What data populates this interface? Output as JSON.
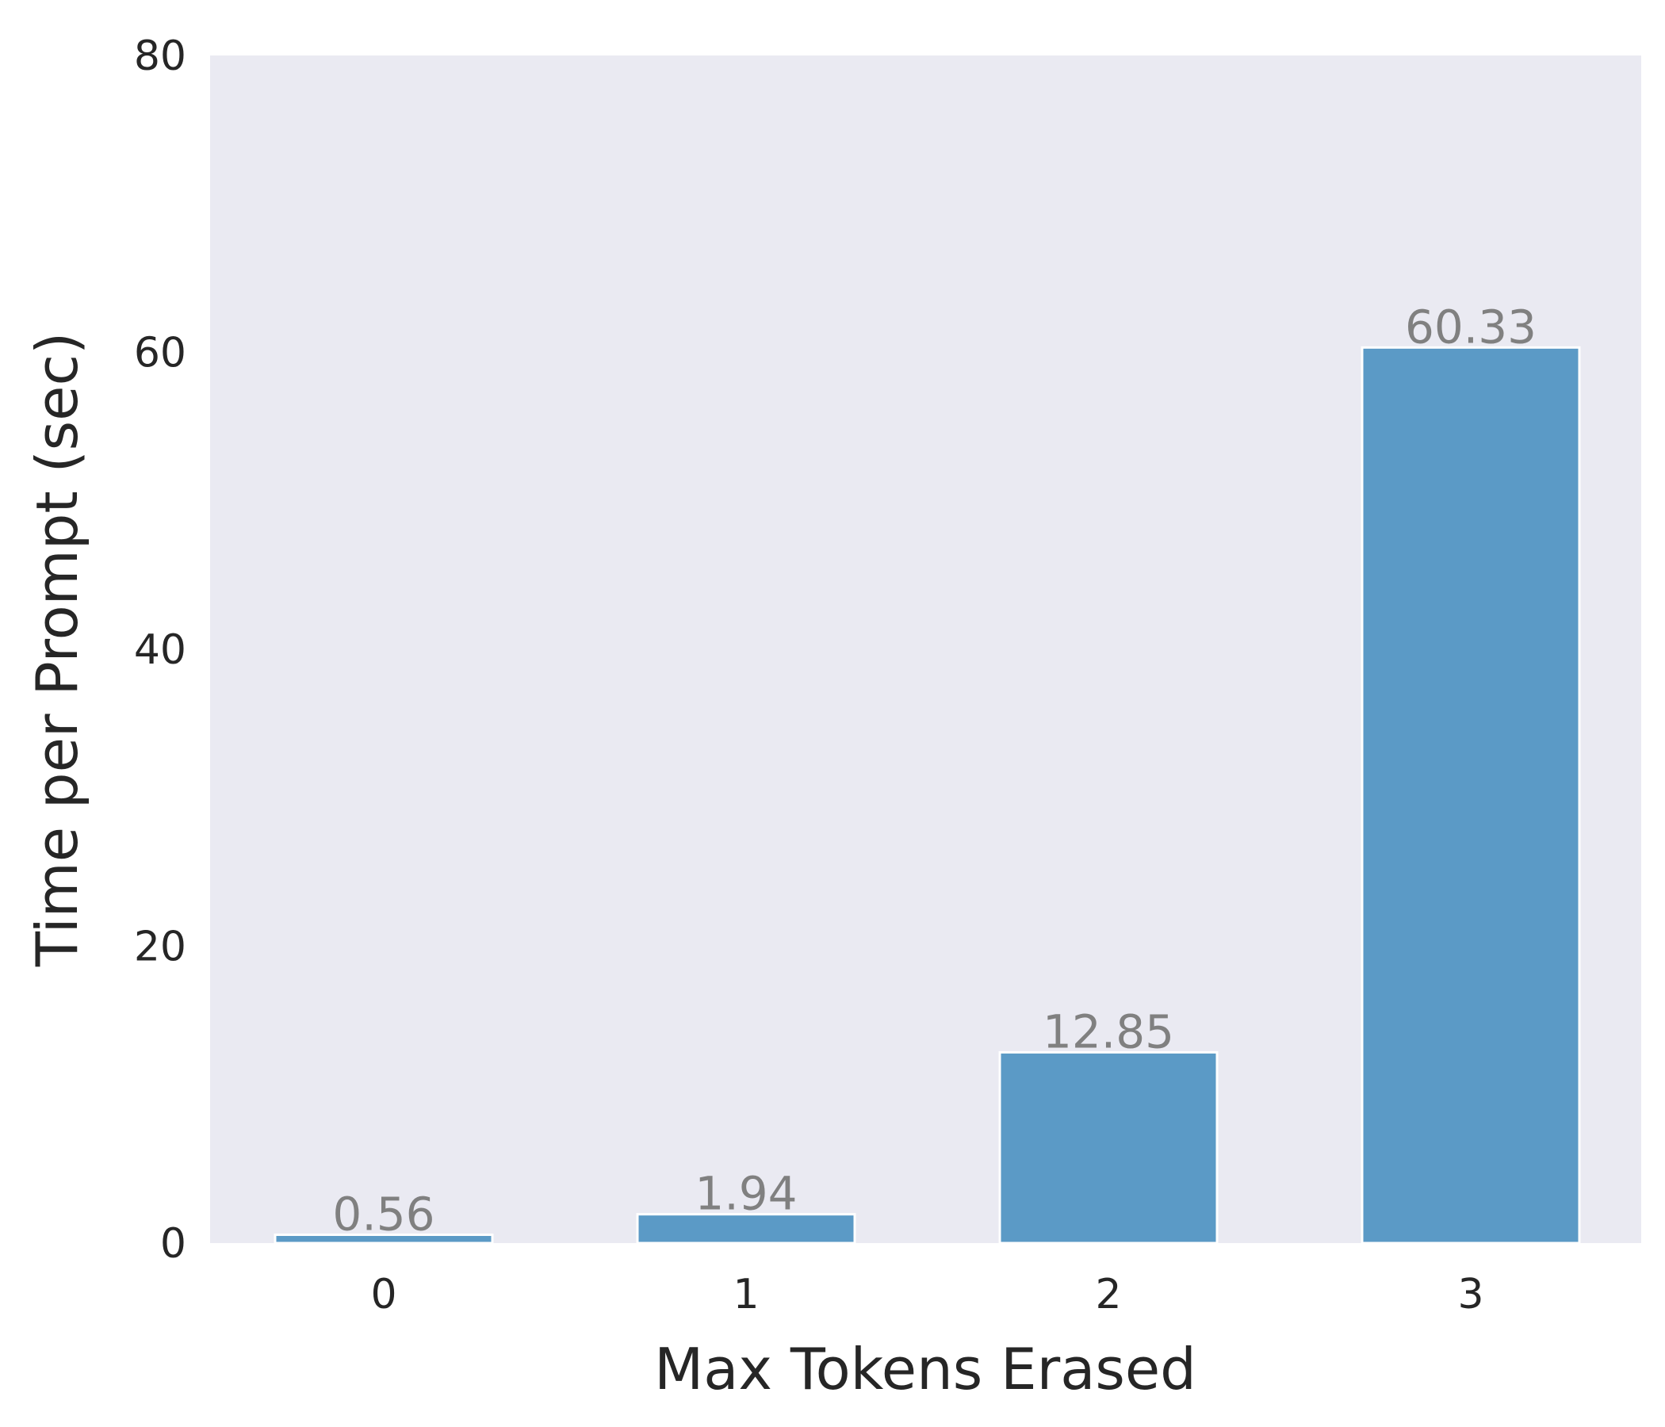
{
  "chart_data": {
    "type": "bar",
    "categories": [
      "0",
      "1",
      "2",
      "3"
    ],
    "values": [
      0.56,
      1.94,
      12.85,
      60.33
    ],
    "value_labels": [
      "0.56",
      "1.94",
      "12.85",
      "60.33"
    ],
    "xlabel": "Max Tokens Erased",
    "ylabel": "Time per Prompt (sec)",
    "ylim": [
      0,
      80
    ],
    "yticks": [
      0,
      20,
      40,
      60,
      80
    ],
    "ytick_labels": [
      "0",
      "20",
      "40",
      "60",
      "80"
    ],
    "grid": false,
    "colors": {
      "bar": "#5b9ac6",
      "bar_edge": "#ffffff",
      "plot_background": "#eaeaf2",
      "value_label": "#808080",
      "text": "#262626"
    }
  }
}
